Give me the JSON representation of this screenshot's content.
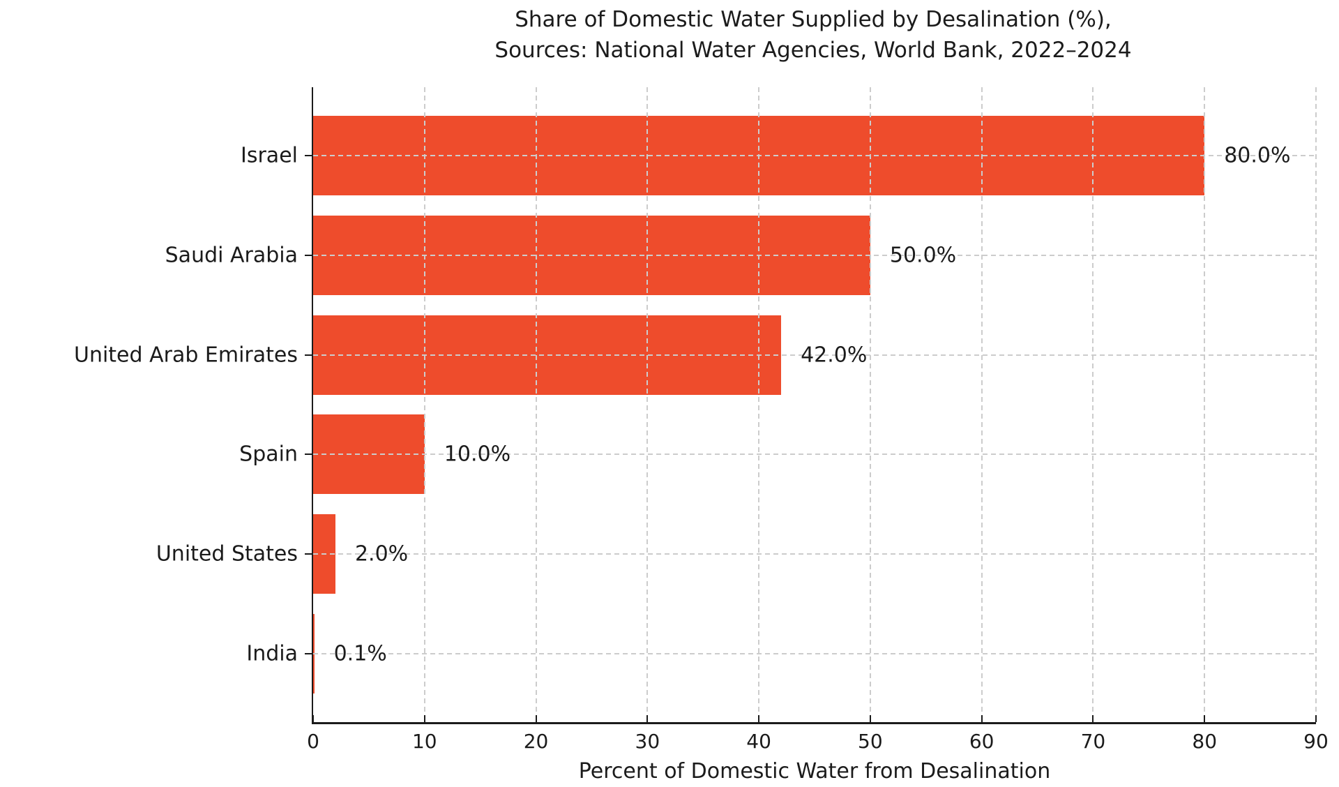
{
  "chart_data": {
    "type": "bar",
    "orientation": "horizontal",
    "title_line1": "Share of Domestic Water Supplied by Desalination (%),",
    "title_line2": "Sources: National Water Agencies, World Bank, 2022–2024",
    "categories": [
      "Israel",
      "Saudi Arabia",
      "United Arab Emirates",
      "Spain",
      "United States",
      "India"
    ],
    "values": [
      80.0,
      50.0,
      42.0,
      10.0,
      2.0,
      0.1
    ],
    "value_labels": [
      "80.0%",
      "50.0%",
      "42.0%",
      "10.0%",
      "2.0%",
      "0.1%"
    ],
    "xlabel": "Percent of Domestic Water from Desalination",
    "ylabel": "",
    "xlim": [
      0,
      90
    ],
    "xticks": [
      0,
      10,
      20,
      30,
      40,
      50,
      60,
      70,
      80,
      90
    ],
    "bar_height_fraction": 0.8,
    "grid": "both-axes, dashed, drawn above bars",
    "legend_position": "none",
    "colors": {
      "bar": "#EE4C2C",
      "grid": "#CCCCCC",
      "text": "#1B1B1B",
      "axis": "#1B1B1B",
      "background": "#FFFFFF"
    }
  }
}
